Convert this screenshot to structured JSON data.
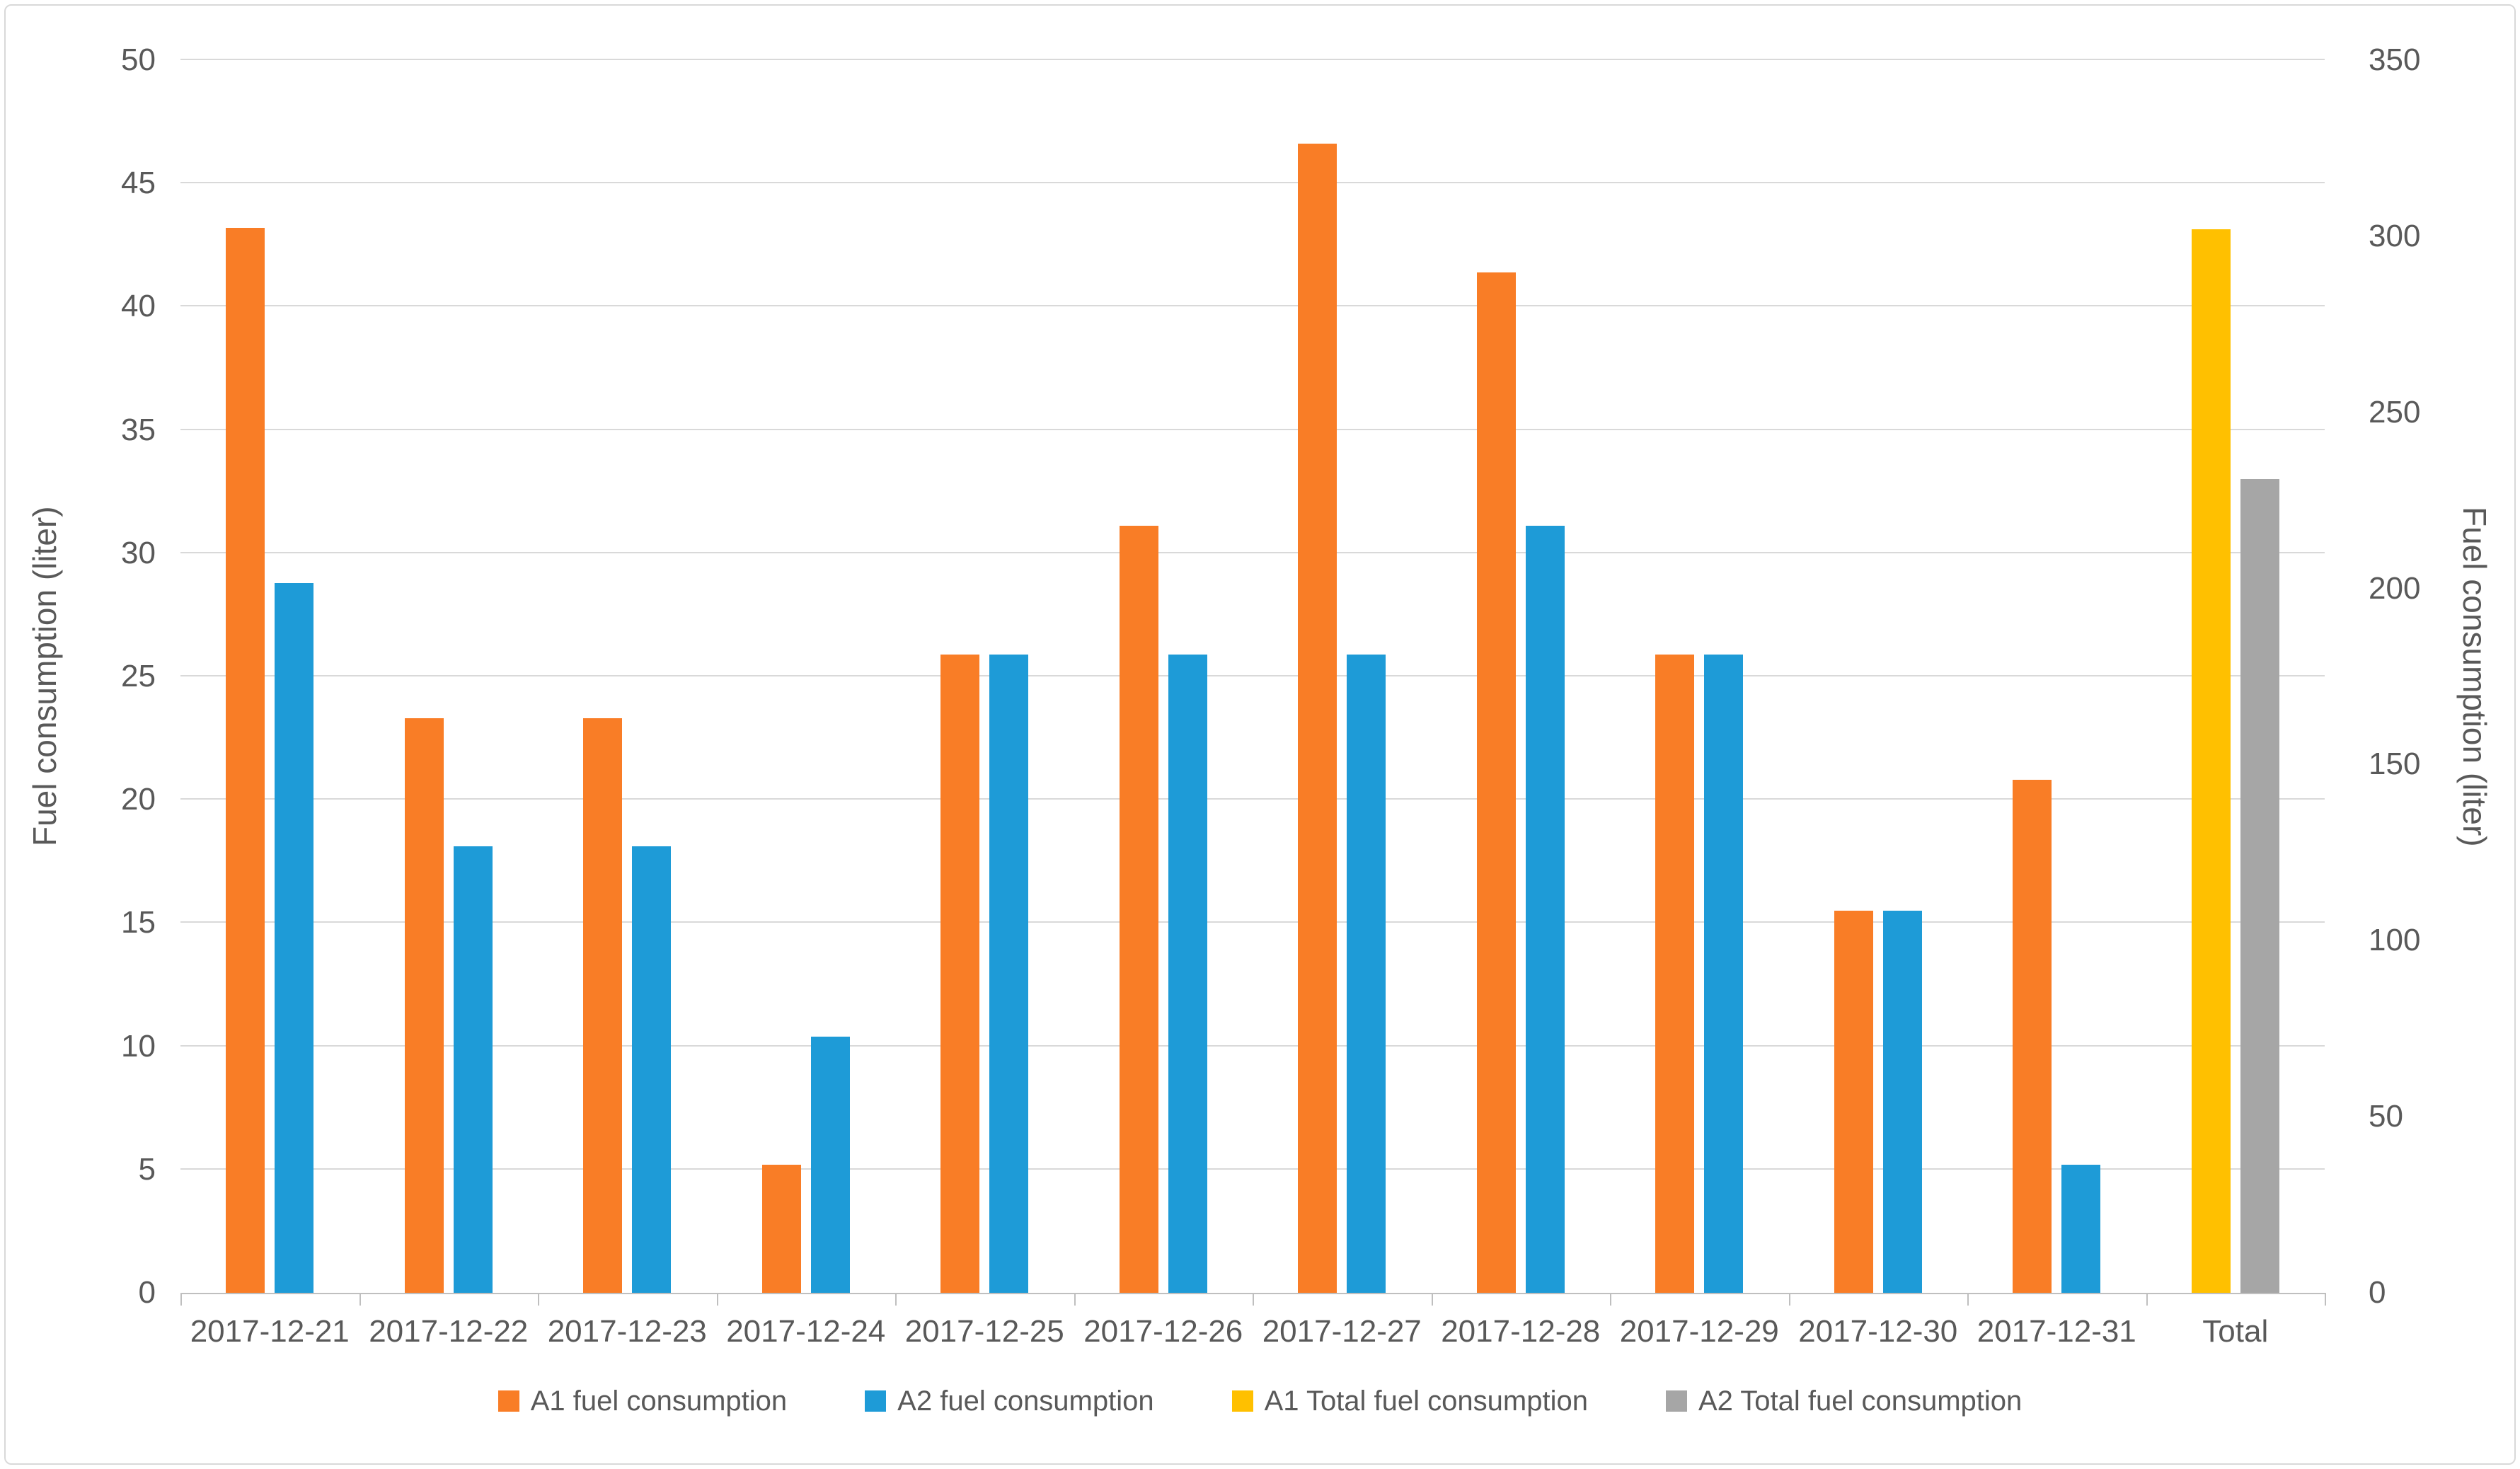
{
  "colors": {
    "background": "#FFFFFF",
    "frame_border": "#D9D9D9",
    "gridline": "#D9D9D9",
    "axis_line": "#BFBFBF",
    "text": "#595959",
    "a1_orange": "#F97D26",
    "a2_blue": "#1E9BD7",
    "a1_total_yellow": "#FFC000",
    "a2_total_gray": "#A6A6A6"
  },
  "chart_data": {
    "type": "bar",
    "title": "",
    "categories": [
      "2017-12-21",
      "2017-12-22",
      "2017-12-23",
      "2017-12-24",
      "2017-12-25",
      "2017-12-26",
      "2017-12-27",
      "2017-12-28",
      "2017-12-29",
      "2017-12-30",
      "2017-12-31",
      "Total"
    ],
    "series": [
      {
        "name": "A1 fuel consumption",
        "color": "#F97D26",
        "axis": "left",
        "values": [
          43.2,
          23.3,
          23.3,
          5.2,
          25.9,
          31.1,
          46.6,
          41.4,
          25.9,
          15.5,
          20.8,
          null
        ]
      },
      {
        "name": "A2 fuel consumption",
        "color": "#1E9BD7",
        "axis": "left",
        "values": [
          28.8,
          18.1,
          18.1,
          10.4,
          25.9,
          25.9,
          25.9,
          31.1,
          25.9,
          15.5,
          5.2,
          null
        ]
      },
      {
        "name": "A1 Total fuel consumption",
        "color": "#FFC000",
        "axis": "right",
        "values": [
          null,
          null,
          null,
          null,
          null,
          null,
          null,
          null,
          null,
          null,
          null,
          302
        ]
      },
      {
        "name": "A2 Total fuel consumption",
        "color": "#A6A6A6",
        "axis": "right",
        "values": [
          null,
          null,
          null,
          null,
          null,
          null,
          null,
          null,
          null,
          null,
          null,
          231
        ]
      }
    ],
    "left_axis": {
      "title": "Fuel consumption (liter)",
      "min": 0,
      "max": 50,
      "step": 5,
      "ticks": [
        0,
        5,
        10,
        15,
        20,
        25,
        30,
        35,
        40,
        45,
        50
      ]
    },
    "right_axis": {
      "title": "Fuel consumption (liter)",
      "min": 0,
      "max": 350,
      "step": 50,
      "ticks": [
        0,
        50,
        100,
        150,
        200,
        250,
        300,
        350
      ]
    },
    "grid": true,
    "legend_position": "bottom"
  }
}
